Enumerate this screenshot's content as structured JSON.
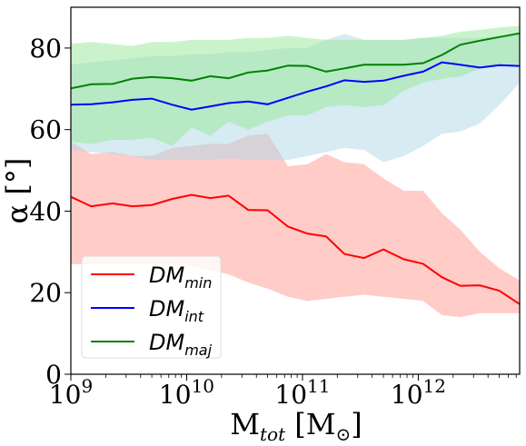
{
  "chart_data": {
    "type": "line",
    "xscale": "log",
    "xlim": [
      "1e9",
      "7.5e12"
    ],
    "ylim": [
      0,
      90
    ],
    "x_ticks": [
      {
        "base": "10",
        "exp": "9",
        "value": 1000000000.0
      },
      {
        "base": "10",
        "exp": "10",
        "value": 10000000000.0
      },
      {
        "base": "10",
        "exp": "11",
        "value": 100000000000.0
      },
      {
        "base": "10",
        "exp": "12",
        "value": 1000000000000.0
      }
    ],
    "y_ticks": [
      "0",
      "20",
      "40",
      "60",
      "80"
    ],
    "xlabel": {
      "main": "M",
      "sub": "tot",
      "unit_open": "[M",
      "unit_sub": "⊙",
      "unit_close": "]"
    },
    "ylabel": "α [°]",
    "legend_position": "lower-left",
    "x": [
      1000000000.0,
      1500000000.0,
      2300000000.0,
      3400000000.0,
      5000000000.0,
      7500000000.0,
      11000000000.0,
      16000000000.0,
      23000000000.0,
      34000000000.0,
      50000000000.0,
      75000000000.0,
      110000000000.0,
      160000000000.0,
      230000000000.0,
      340000000000.0,
      500000000000.0,
      750000000000.0,
      1100000000000.0,
      1600000000000.0,
      2300000000000.0,
      3400000000000.0,
      5000000000000.0,
      7500000000000.0
    ],
    "series": [
      {
        "label_main": "DM",
        "label_sub": "min",
        "color": "#ff0000",
        "band_color": "#ff9a91",
        "values": [
          43.5,
          41.2,
          41.9,
          41.2,
          41.5,
          43.0,
          44.0,
          43.2,
          43.8,
          40.3,
          40.2,
          36.2,
          34.5,
          33.8,
          29.5,
          28.5,
          30.6,
          28.2,
          27.1,
          23.8,
          21.7,
          21.8,
          20.5,
          17.2
        ],
        "lower": [
          27.0,
          27.0,
          27.0,
          27.0,
          27.0,
          27.0,
          26.5,
          25.5,
          24.5,
          22.5,
          21.0,
          19.0,
          18.0,
          18.5,
          19.0,
          19.5,
          19.0,
          18.5,
          18.0,
          14.5,
          14.0,
          15.0,
          15.0,
          15.0
        ],
        "upper": [
          57.0,
          54.0,
          54.5,
          53.5,
          53.5,
          55.5,
          56.0,
          56.5,
          56.5,
          58.5,
          59.0,
          51.0,
          51.5,
          54.0,
          52.0,
          51.5,
          48.0,
          45.0,
          45.0,
          39.5,
          35.5,
          30.0,
          26.0,
          23.0
        ]
      },
      {
        "label_main": "DM",
        "label_sub": "int",
        "color": "#0000ff",
        "band_color": "#add8e6",
        "values": [
          66.1,
          66.2,
          66.7,
          67.3,
          67.6,
          66.1,
          64.9,
          65.7,
          66.5,
          66.9,
          66.2,
          67.8,
          69.3,
          70.6,
          72.1,
          71.7,
          72.0,
          73.2,
          74.2,
          76.5,
          75.9,
          75.2,
          75.8,
          75.6
        ],
        "lower": [
          55.0,
          54.5,
          54.0,
          53.5,
          52.5,
          52.5,
          52.5,
          52.5,
          53.0,
          52.5,
          52.5,
          52.5,
          53.5,
          54.5,
          55.5,
          55.0,
          52.0,
          53.5,
          56.0,
          59.0,
          59.5,
          61.5,
          66.0,
          71.5
        ],
        "upper": [
          76.0,
          76.5,
          77.0,
          77.5,
          78.0,
          78.0,
          78.5,
          78.5,
          79.0,
          79.0,
          79.5,
          80.0,
          80.0,
          82.0,
          83.5,
          82.0,
          82.0,
          82.0,
          82.5,
          82.5,
          82.5,
          82.5,
          83.0,
          83.5
        ]
      },
      {
        "label_main": "DM",
        "label_sub": "maj",
        "color": "#008000",
        "band_color": "#98e898",
        "values": [
          70.1,
          71.1,
          71.2,
          72.5,
          72.9,
          72.6,
          72.0,
          73.1,
          72.6,
          74.0,
          74.5,
          75.7,
          75.6,
          74.2,
          75.0,
          75.9,
          75.9,
          75.9,
          76.3,
          78.3,
          80.8,
          81.8,
          82.7,
          83.6
        ]
      }
    ],
    "green_band_lower": [
      57.0,
      56.5,
      57.5,
      57.5,
      58.0,
      56.0,
      60.5,
      58.5,
      62.0,
      60.0,
      62.0,
      63.5,
      63.5,
      65.5,
      66.0,
      65.5,
      66.0,
      69.5,
      71.5,
      72.5,
      73.0,
      75.0,
      75.5,
      76.0
    ],
    "green_band_upper": [
      81.0,
      81.5,
      81.0,
      80.5,
      81.5,
      81.5,
      82.0,
      82.0,
      82.0,
      82.5,
      82.5,
      83.0,
      82.5,
      82.0,
      82.0,
      82.0,
      82.0,
      82.0,
      82.5,
      83.0,
      84.0,
      84.5,
      85.0,
      85.5
    ]
  }
}
